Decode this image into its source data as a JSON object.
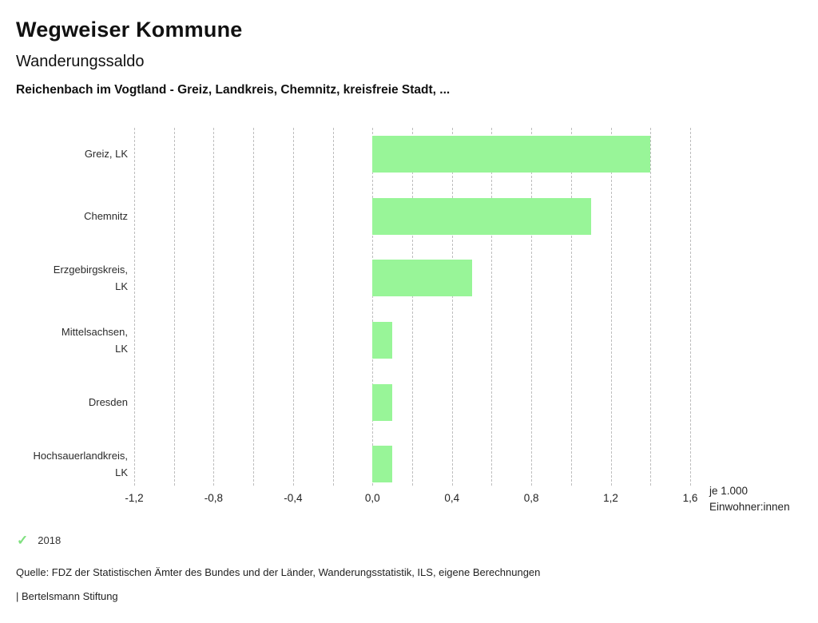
{
  "header": {
    "app_title": "Wegweiser Kommune",
    "chart_title": "Wanderungssaldo",
    "chart_subtitle": "Reichenbach im Vogtland - Greiz, Landkreis, Chemnitz, kreisfreie Stadt, ..."
  },
  "chart_data": {
    "type": "bar",
    "orientation": "horizontal",
    "title": "Wanderungssaldo",
    "subtitle": "Reichenbach im Vogtland - Greiz, Landkreis, Chemnitz, kreisfreie Stadt, ...",
    "categories": [
      "Greiz, LK",
      "Chemnitz",
      "Erzgebirgskreis, LK",
      "Mittelsachsen, LK",
      "Dresden",
      "Hochsauerlandkreis, LK"
    ],
    "category_lines": [
      [
        "Greiz, LK"
      ],
      [
        "Chemnitz"
      ],
      [
        "Erzgebirgskreis,",
        "LK"
      ],
      [
        "Mittelsachsen,",
        "LK"
      ],
      [
        "Dresden"
      ],
      [
        "Hochsauerlandkreis,",
        "LK"
      ]
    ],
    "series": [
      {
        "name": "2018",
        "values": [
          1.4,
          1.1,
          0.5,
          0.1,
          0.1,
          0.1
        ]
      }
    ],
    "xlabel": "je 1.000 Einwohner:innen",
    "xlabel_lines": [
      "je 1.000",
      "Einwohner:innen"
    ],
    "xlim": [
      -1.2,
      1.6
    ],
    "x_ticks": [
      -1.2,
      -0.8,
      -0.4,
      0.0,
      0.4,
      0.8,
      1.2,
      1.6
    ],
    "x_tick_labels": [
      "-1,2",
      "-0,8",
      "-0,4",
      "0,0",
      "0,4",
      "0,8",
      "1,2",
      "1,6"
    ],
    "gridline_step": 0.2,
    "grid": true,
    "legend_position": "bottom-left",
    "colors": {
      "bar": "#98f598",
      "legend_check": "#7fe07f",
      "gridline": "#bdbdbd"
    }
  },
  "legend": {
    "check_icon": "✓",
    "label": "2018"
  },
  "footer": {
    "source": "Quelle: FDZ der Statistischen Ämter des Bundes und der Länder, Wanderungsstatistik, ILS, eigene Berechnungen",
    "branding": "| Bertelsmann Stiftung"
  }
}
